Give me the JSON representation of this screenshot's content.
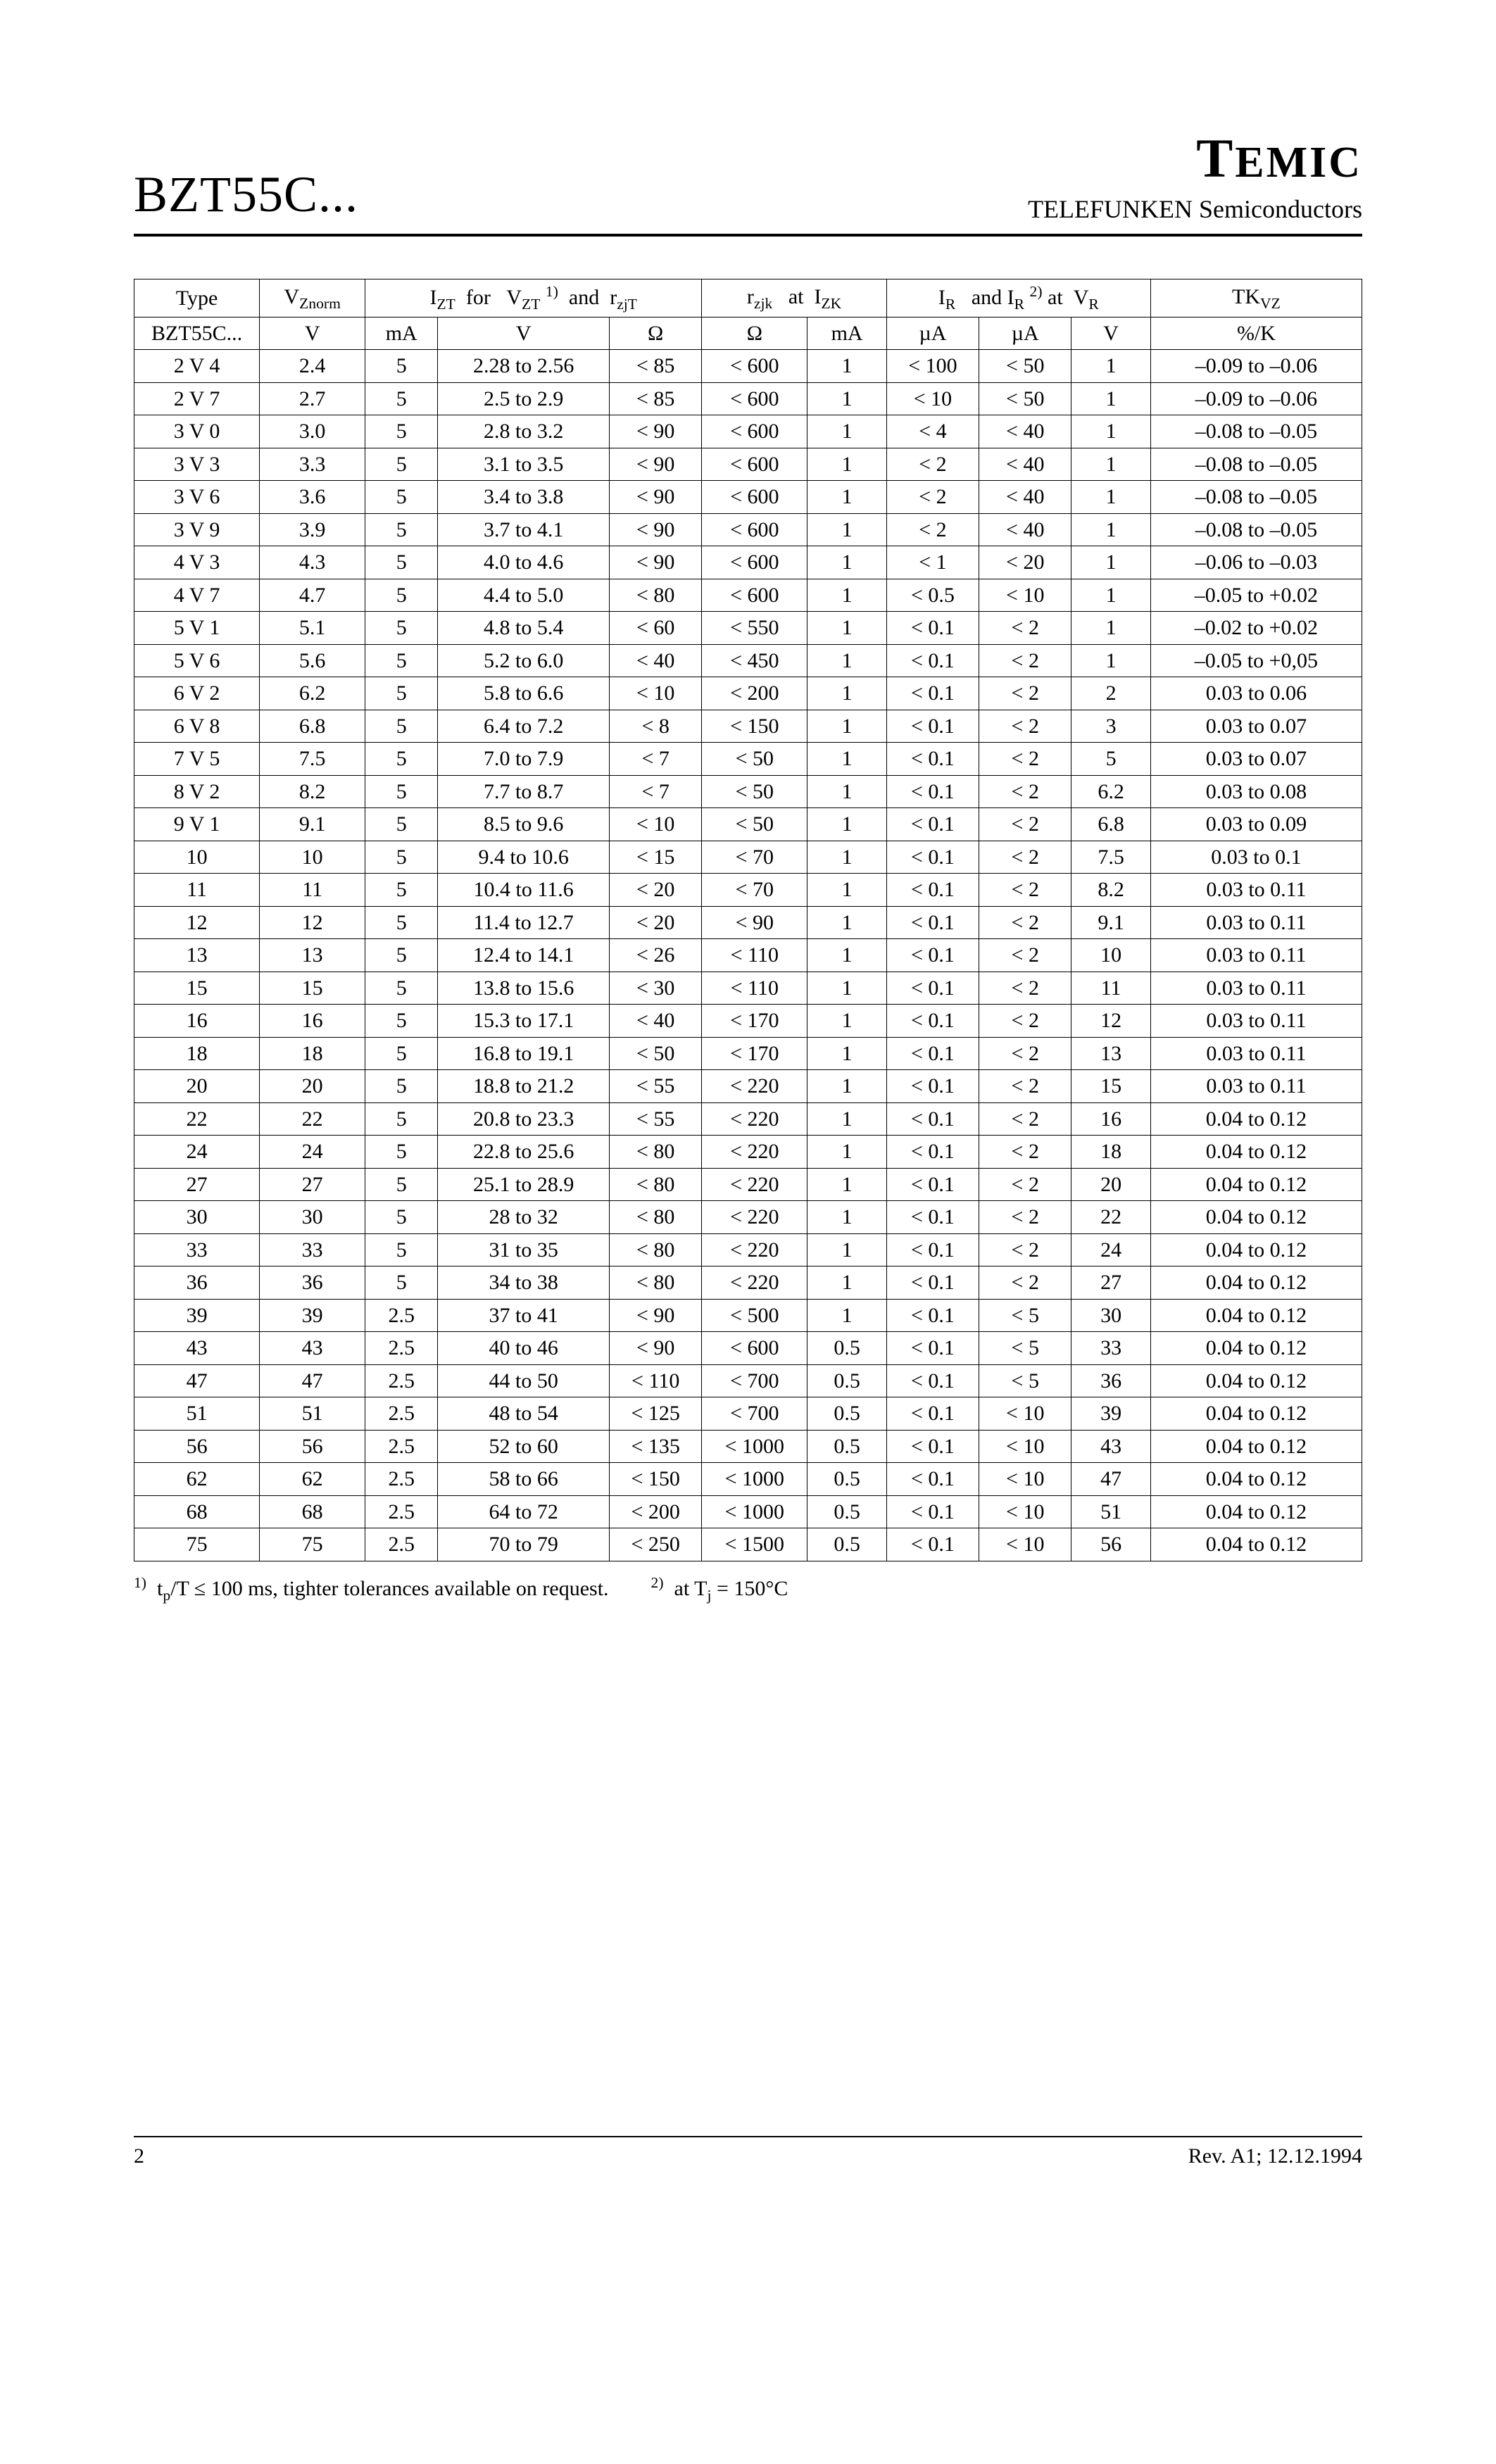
{
  "header": {
    "product": "BZT55C...",
    "brand_main": "T",
    "brand_rest": "EMIC",
    "brand_sub": "TELEFUNKEN Semiconductors"
  },
  "table": {
    "head1": {
      "type": "Type",
      "vznorm_html": "V<span class='sub'>Znorm</span>",
      "iztgroup_html": "I<span class='sub'>ZT</span>&nbsp;&nbsp;for&nbsp;&nbsp;&nbsp;V<span class='sub'>ZT</span> <span class='sup'>1)</span>&nbsp;&nbsp;and&nbsp;&nbsp;r<span class='sub'>zjT</span>",
      "rzjkgroup_html": "r<span class='sub'>zjk</span>&nbsp;&nbsp;&nbsp;at&nbsp;&nbsp;I<span class='sub'>ZK</span>",
      "irgroup_html": "I<span class='sub'>R</span>&nbsp;&nbsp;&nbsp;and I<span class='sub'>R</span> <span class='sup'>2)</span> at&nbsp;&nbsp;V<span class='sub'>R</span>",
      "tk_html": "TK<span class='sub'>VZ</span>"
    },
    "head2": {
      "type": "BZT55C...",
      "vznorm": "V",
      "izt": "mA",
      "vzt": "V",
      "rzjt": "Ω",
      "rzjk": "Ω",
      "izk": "mA",
      "ir": "µA",
      "ir2": "µA",
      "vr": "V",
      "tk": "%/K"
    },
    "rows": [
      [
        "2 V 4",
        "2.4",
        "5",
        "2.28 to 2.56",
        "< 85",
        "< 600",
        "1",
        "< 100",
        "< 50",
        "1",
        "–0.09 to –0.06"
      ],
      [
        "2 V 7",
        "2.7",
        "5",
        "2.5 to 2.9",
        "< 85",
        "< 600",
        "1",
        "< 10",
        "< 50",
        "1",
        "–0.09 to –0.06"
      ],
      [
        "3 V 0",
        "3.0",
        "5",
        "2.8 to 3.2",
        "< 90",
        "< 600",
        "1",
        "< 4",
        "< 40",
        "1",
        "–0.08 to –0.05"
      ],
      [
        "3 V 3",
        "3.3",
        "5",
        "3.1 to 3.5",
        "< 90",
        "< 600",
        "1",
        "< 2",
        "< 40",
        "1",
        "–0.08 to –0.05"
      ],
      [
        "3 V 6",
        "3.6",
        "5",
        "3.4 to 3.8",
        "< 90",
        "< 600",
        "1",
        "< 2",
        "< 40",
        "1",
        "–0.08 to –0.05"
      ],
      [
        "3 V 9",
        "3.9",
        "5",
        "3.7 to 4.1",
        "< 90",
        "< 600",
        "1",
        "< 2",
        "< 40",
        "1",
        "–0.08 to –0.05"
      ],
      [
        "4 V 3",
        "4.3",
        "5",
        "4.0 to 4.6",
        "< 90",
        "< 600",
        "1",
        "< 1",
        "< 20",
        "1",
        "–0.06 to –0.03"
      ],
      [
        "4 V 7",
        "4.7",
        "5",
        "4.4 to 5.0",
        "< 80",
        "< 600",
        "1",
        "< 0.5",
        "< 10",
        "1",
        "–0.05 to +0.02"
      ],
      [
        "5 V 1",
        "5.1",
        "5",
        "4.8 to 5.4",
        "< 60",
        "< 550",
        "1",
        "< 0.1",
        "< 2",
        "1",
        "–0.02 to +0.02"
      ],
      [
        "5 V 6",
        "5.6",
        "5",
        "5.2 to 6.0",
        "< 40",
        "< 450",
        "1",
        "< 0.1",
        "< 2",
        "1",
        "–0.05 to +0,05"
      ],
      [
        "6 V 2",
        "6.2",
        "5",
        "5.8 to 6.6",
        "< 10",
        "< 200",
        "1",
        "< 0.1",
        "< 2",
        "2",
        "0.03 to 0.06"
      ],
      [
        "6 V 8",
        "6.8",
        "5",
        "6.4 to 7.2",
        "< 8",
        "< 150",
        "1",
        "< 0.1",
        "< 2",
        "3",
        "0.03 to 0.07"
      ],
      [
        "7 V 5",
        "7.5",
        "5",
        "7.0 to 7.9",
        "< 7",
        "< 50",
        "1",
        "< 0.1",
        "< 2",
        "5",
        "0.03 to 0.07"
      ],
      [
        "8 V 2",
        "8.2",
        "5",
        "7.7 to 8.7",
        "< 7",
        "< 50",
        "1",
        "< 0.1",
        "< 2",
        "6.2",
        "0.03 to 0.08"
      ],
      [
        "9 V 1",
        "9.1",
        "5",
        "8.5 to 9.6",
        "< 10",
        "< 50",
        "1",
        "< 0.1",
        "< 2",
        "6.8",
        "0.03 to 0.09"
      ],
      [
        "10",
        "10",
        "5",
        "9.4 to 10.6",
        "< 15",
        "< 70",
        "1",
        "< 0.1",
        "< 2",
        "7.5",
        "0.03 to 0.1"
      ],
      [
        "11",
        "11",
        "5",
        "10.4 to 11.6",
        "< 20",
        "< 70",
        "1",
        "< 0.1",
        "< 2",
        "8.2",
        "0.03 to 0.11"
      ],
      [
        "12",
        "12",
        "5",
        "11.4 to 12.7",
        "< 20",
        "< 90",
        "1",
        "< 0.1",
        "< 2",
        "9.1",
        "0.03 to 0.11"
      ],
      [
        "13",
        "13",
        "5",
        "12.4 to 14.1",
        "< 26",
        "< 110",
        "1",
        "< 0.1",
        "< 2",
        "10",
        "0.03 to 0.11"
      ],
      [
        "15",
        "15",
        "5",
        "13.8 to 15.6",
        "< 30",
        "< 110",
        "1",
        "< 0.1",
        "< 2",
        "11",
        "0.03 to 0.11"
      ],
      [
        "16",
        "16",
        "5",
        "15.3 to 17.1",
        "< 40",
        "< 170",
        "1",
        "< 0.1",
        "< 2",
        "12",
        "0.03 to 0.11"
      ],
      [
        "18",
        "18",
        "5",
        "16.8 to 19.1",
        "< 50",
        "< 170",
        "1",
        "< 0.1",
        "< 2",
        "13",
        "0.03 to 0.11"
      ],
      [
        "20",
        "20",
        "5",
        "18.8 to 21.2",
        "< 55",
        "< 220",
        "1",
        "< 0.1",
        "< 2",
        "15",
        "0.03 to 0.11"
      ],
      [
        "22",
        "22",
        "5",
        "20.8 to 23.3",
        "< 55",
        "< 220",
        "1",
        "< 0.1",
        "< 2",
        "16",
        "0.04 to 0.12"
      ],
      [
        "24",
        "24",
        "5",
        "22.8 to 25.6",
        "< 80",
        "< 220",
        "1",
        "< 0.1",
        "< 2",
        "18",
        "0.04 to 0.12"
      ],
      [
        "27",
        "27",
        "5",
        "25.1 to 28.9",
        "< 80",
        "< 220",
        "1",
        "< 0.1",
        "< 2",
        "20",
        "0.04 to 0.12"
      ],
      [
        "30",
        "30",
        "5",
        "28 to 32",
        "< 80",
        "< 220",
        "1",
        "< 0.1",
        "< 2",
        "22",
        "0.04 to 0.12"
      ],
      [
        "33",
        "33",
        "5",
        "31 to 35",
        "< 80",
        "< 220",
        "1",
        "< 0.1",
        "< 2",
        "24",
        "0.04 to 0.12"
      ],
      [
        "36",
        "36",
        "5",
        "34 to 38",
        "< 80",
        "< 220",
        "1",
        "< 0.1",
        "< 2",
        "27",
        "0.04 to 0.12"
      ],
      [
        "39",
        "39",
        "2.5",
        "37 to 41",
        "< 90",
        "< 500",
        "1",
        "< 0.1",
        "< 5",
        "30",
        "0.04 to 0.12"
      ],
      [
        "43",
        "43",
        "2.5",
        "40 to 46",
        "< 90",
        "< 600",
        "0.5",
        "< 0.1",
        "< 5",
        "33",
        "0.04 to 0.12"
      ],
      [
        "47",
        "47",
        "2.5",
        "44 to 50",
        "< 110",
        "< 700",
        "0.5",
        "< 0.1",
        "< 5",
        "36",
        "0.04 to 0.12"
      ],
      [
        "51",
        "51",
        "2.5",
        "48 to 54",
        "< 125",
        "< 700",
        "0.5",
        "< 0.1",
        "< 10",
        "39",
        "0.04 to 0.12"
      ],
      [
        "56",
        "56",
        "2.5",
        "52 to 60",
        "< 135",
        "< 1000",
        "0.5",
        "< 0.1",
        "< 10",
        "43",
        "0.04 to 0.12"
      ],
      [
        "62",
        "62",
        "2.5",
        "58 to 66",
        "< 150",
        "< 1000",
        "0.5",
        "< 0.1",
        "< 10",
        "47",
        "0.04 to 0.12"
      ],
      [
        "68",
        "68",
        "2.5",
        "64 to 72",
        "< 200",
        "< 1000",
        "0.5",
        "< 0.1",
        "< 10",
        "51",
        "0.04 to 0.12"
      ],
      [
        "75",
        "75",
        "2.5",
        "70 to 79",
        "< 250",
        "< 1500",
        "0.5",
        "< 0.1",
        "< 10",
        "56",
        "0.04 to 0.12"
      ]
    ]
  },
  "footnotes": {
    "fn1_html": "<span class='fnsup'>1)</span>&nbsp;&nbsp;t<span class='sub'>p</span>/T ≤ 100 ms, tighter tolerances available on request.",
    "fn2_html": "<span class='fnsup'>2)</span>&nbsp;&nbsp;at T<span class='sub'>j</span> = 150°C"
  },
  "footer": {
    "page": "2",
    "rev": "Rev. A1; 12.12.1994"
  }
}
